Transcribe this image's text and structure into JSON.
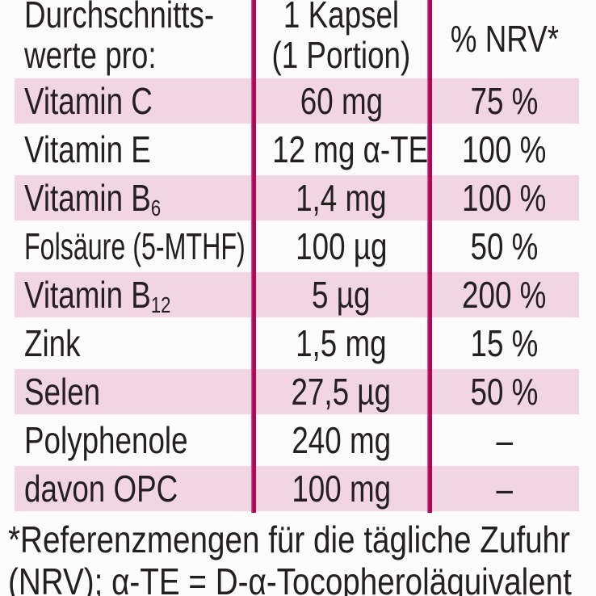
{
  "colors": {
    "background": "#fcfbfb",
    "row_shade": "#f2d5e2",
    "divider": "#c2085f",
    "text": "#242021"
  },
  "table": {
    "header": {
      "col1": [
        "Durchschnitts-",
        "werte pro:"
      ],
      "col2": [
        "1 Kapsel",
        "(1 Portion)"
      ],
      "col3": "% NRV*"
    },
    "rows": [
      {
        "name": "Vitamin C",
        "amount": "60 mg",
        "nrv": "75 %"
      },
      {
        "name": "Vitamin E",
        "amount": "12 mg α-TE",
        "nrv": "100 %"
      },
      {
        "name": "Vitamin B",
        "name_sub": "6",
        "amount": "1,4 mg",
        "nrv": "100 %"
      },
      {
        "name": "Folsäure (5-MTHF)",
        "amount": "100 µg",
        "nrv": "50 %"
      },
      {
        "name": "Vitamin B",
        "name_sub": "12",
        "amount": "5 µg",
        "nrv": "200 %"
      },
      {
        "name": "Zink",
        "amount": "1,5 mg",
        "nrv": "15 %"
      },
      {
        "name": "Selen",
        "amount": "27,5 µg",
        "nrv": "50 %"
      },
      {
        "name": "Polyphenole",
        "amount": "240 mg",
        "nrv": "–"
      },
      {
        "name": "davon OPC",
        "amount": "100 mg",
        "nrv": "–"
      }
    ],
    "footnote": [
      "*Referenzmengen für die tägliche Zufuhr",
      "(NRV); α-TE = D-α-Tocopheroläquivalent"
    ]
  }
}
